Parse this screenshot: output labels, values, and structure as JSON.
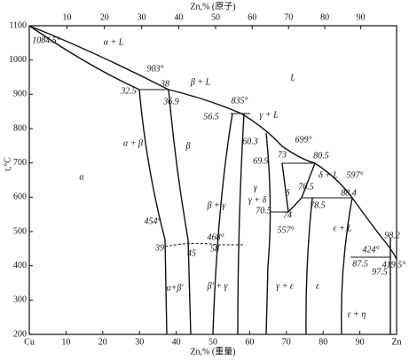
{
  "header": {
    "top_axis_label": "Zn,% (原子)",
    "bottom_axis_label": "Zn,% (重量)",
    "y_axis_label": "t,°C",
    "left_end": "Cu",
    "right_end": "Zn"
  },
  "axes": {
    "top_ticks": [
      10,
      20,
      30,
      40,
      50,
      60,
      70,
      80,
      90
    ],
    "bottom_ticks": [
      10,
      20,
      30,
      40,
      50,
      60,
      70,
      80,
      90
    ],
    "left_ticks": [
      200,
      300,
      400,
      500,
      600,
      700,
      800,
      900,
      1000,
      1100
    ]
  },
  "labels": [
    "1084.5°",
    "α + L",
    "903°",
    "38",
    "β + L",
    "32.5",
    "36.9",
    "L",
    "835°",
    "56.5",
    "γ + L",
    "699°",
    "α + β",
    "β",
    "60.3",
    "73",
    "80.5",
    "69.9",
    "δ + L",
    "597°",
    "α",
    "γ",
    "δ",
    "76.5",
    "88.4",
    "β + γ",
    "γ + δ",
    "70.5",
    "78.5",
    "74",
    "454°",
    "468°",
    "557°",
    "ε + L",
    "98.2",
    "39",
    "45",
    "58",
    "424°",
    "87.5",
    "419.5°",
    "97.5",
    "α+β'",
    "β' + γ",
    "γ + ε",
    "ε",
    "ε + η"
  ]
}
